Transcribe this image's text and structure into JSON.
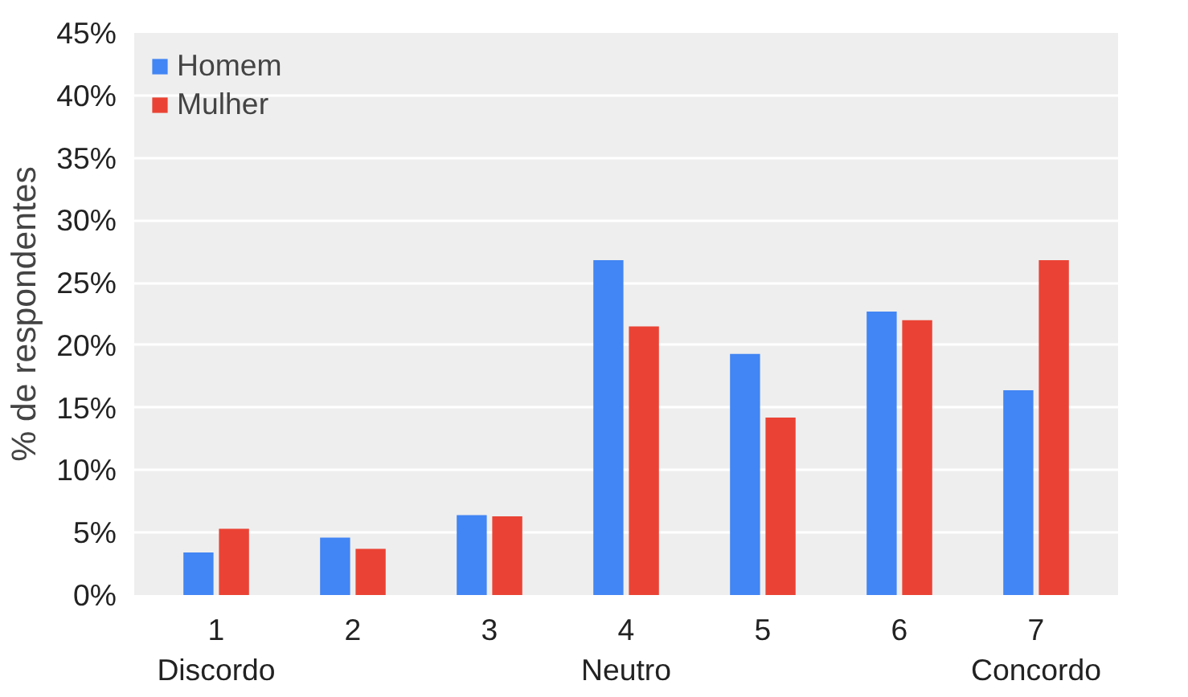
{
  "chart_data": {
    "type": "bar",
    "ylabel": "% de respondentes",
    "categories": [
      "1\nDiscordo",
      "2",
      "3",
      "4\nNeutro",
      "5",
      "6",
      "7\nConcordo"
    ],
    "series": [
      {
        "name": "Homem",
        "color": "#4285f4",
        "values": [
          3.4,
          4.6,
          6.4,
          26.8,
          19.3,
          22.7,
          16.4
        ]
      },
      {
        "name": "Mulher",
        "color": "#ea4335",
        "values": [
          5.3,
          3.7,
          6.3,
          21.5,
          14.2,
          22.0,
          26.8
        ]
      }
    ],
    "ylim": [
      0,
      45
    ],
    "yticks": [
      {
        "value": 0,
        "label": "0%"
      },
      {
        "value": 5,
        "label": "5%"
      },
      {
        "value": 10,
        "label": "10%"
      },
      {
        "value": 15,
        "label": "15%"
      },
      {
        "value": 20,
        "label": "20%"
      },
      {
        "value": 25,
        "label": "25%"
      },
      {
        "value": 30,
        "label": "30%"
      },
      {
        "value": 35,
        "label": "35%"
      },
      {
        "value": 40,
        "label": "40%"
      },
      {
        "value": 45,
        "label": "45%"
      }
    ],
    "grid": "y",
    "legend": "top left"
  }
}
